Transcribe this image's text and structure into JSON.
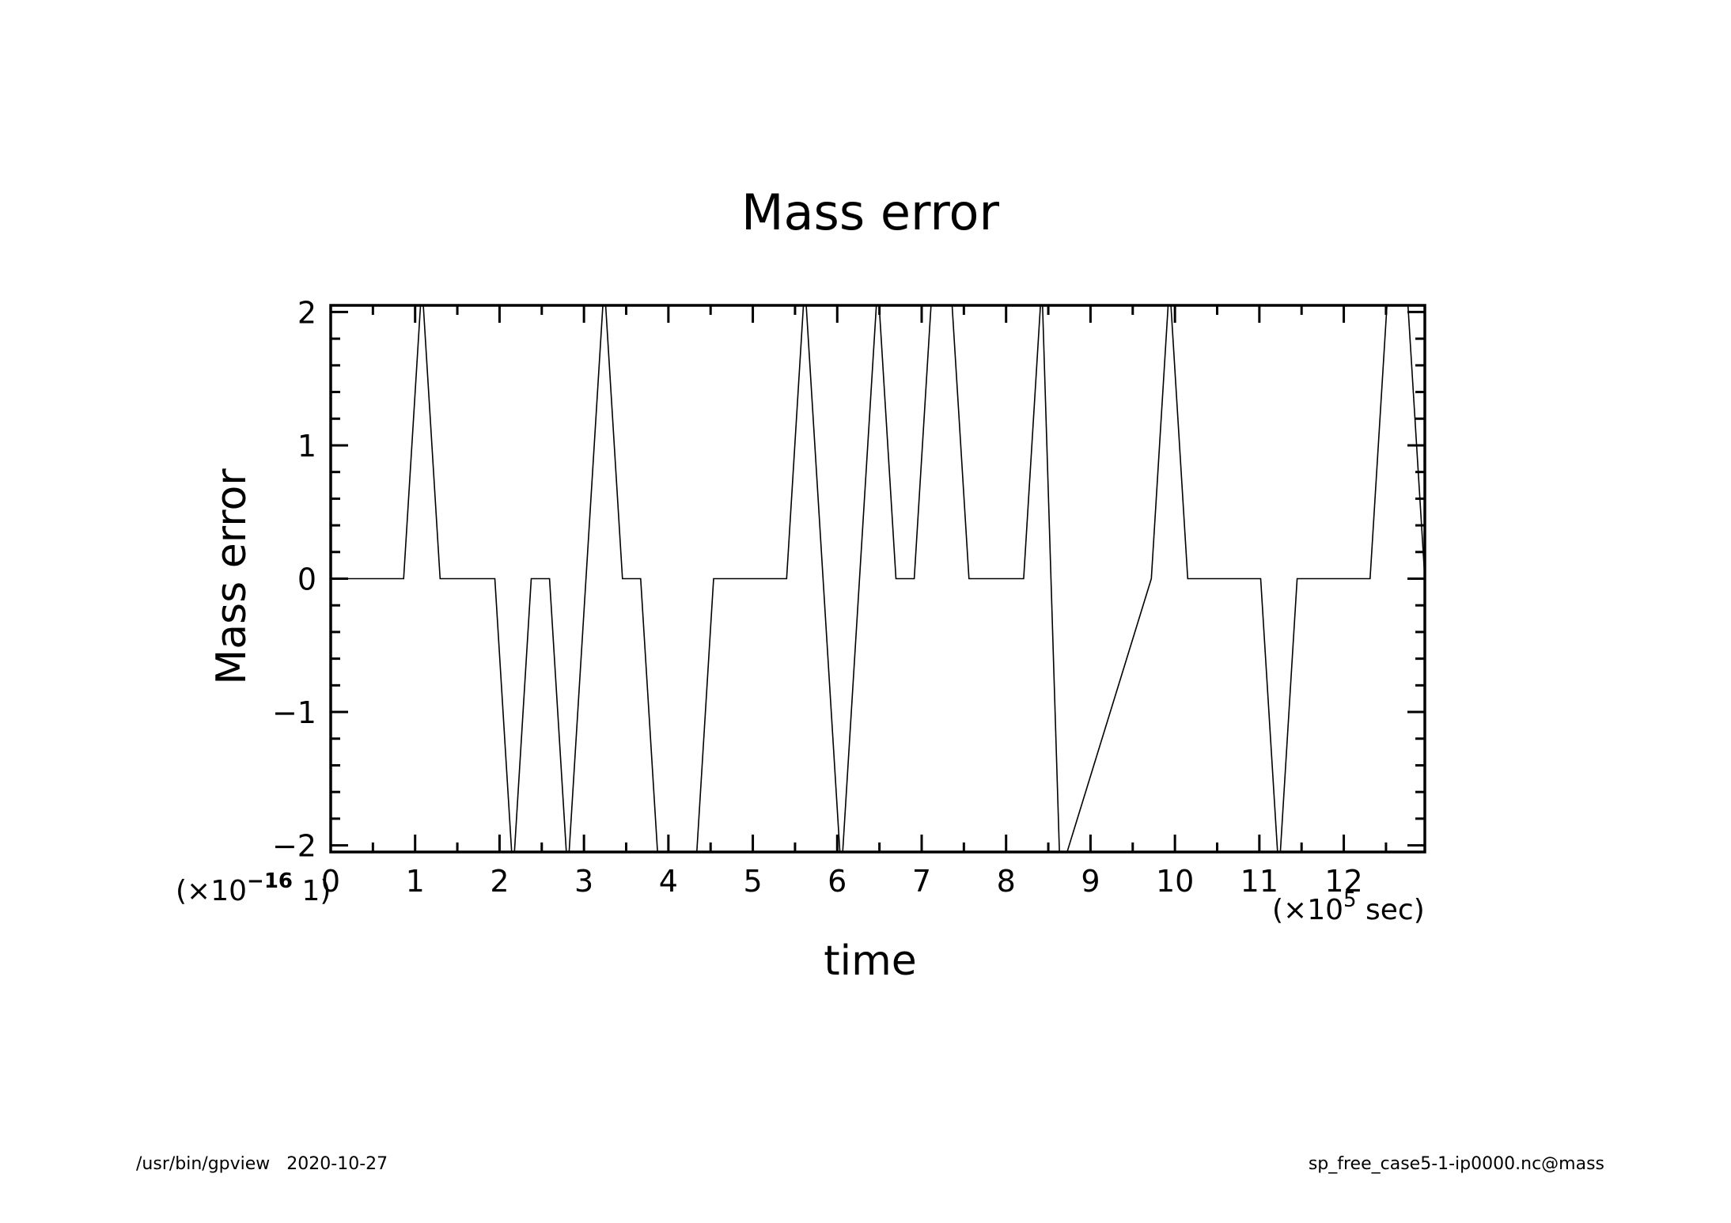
{
  "chart_data": {
    "type": "line",
    "title": "Mass error",
    "xlabel": "time",
    "ylabel": "Mass error",
    "x_scale_note": {
      "prefix": "(×10",
      "exp": "5",
      "suffix": " sec)"
    },
    "y_scale_note": {
      "prefix": "(×10",
      "exp": "−16",
      "suffix": " 1)"
    },
    "xlim": [
      0,
      12.96
    ],
    "ylim": [
      -2.05,
      2.05
    ],
    "x_ticks": [
      0,
      1,
      2,
      3,
      4,
      5,
      6,
      7,
      8,
      9,
      10,
      11,
      12
    ],
    "x_tick_labels": [
      "0",
      "1",
      "2",
      "3",
      "4",
      "5",
      "6",
      "7",
      "8",
      "9",
      "10",
      "11",
      "12"
    ],
    "y_ticks": [
      -2,
      -1,
      0,
      1,
      2
    ],
    "y_tick_labels": [
      "−2",
      "−1",
      "0",
      "1",
      "2"
    ],
    "grid": false,
    "series": [
      {
        "x": [
          0.0,
          0.864,
          1.08,
          1.296,
          1.944,
          2.16,
          2.376,
          2.592,
          2.808,
          3.24,
          3.456,
          3.672,
          3.888,
          4.32,
          4.536,
          5.4,
          5.616,
          6.048,
          6.48,
          6.696,
          6.912,
          7.128,
          7.344,
          7.56,
          8.208,
          8.424,
          8.64,
          9.72,
          9.936,
          10.152,
          11.016,
          11.232,
          11.448,
          12.312,
          12.528,
          12.744,
          12.96
        ],
        "y": [
          0,
          0,
          2.22,
          0,
          0,
          -2.22,
          0,
          0,
          -2.22,
          2.22,
          0,
          0,
          -2.22,
          -2.22,
          0,
          0,
          2.22,
          -2.22,
          2.22,
          0,
          0,
          2.22,
          2.22,
          0,
          0,
          2.22,
          -2.22,
          0,
          2.22,
          0,
          0,
          -2.22,
          0,
          0,
          2.22,
          2.22,
          0
        ]
      }
    ]
  },
  "footer": {
    "left": "/usr/bin/gpview   2020-10-27",
    "right": "sp_free_case5-1-ip0000.nc@mass"
  }
}
